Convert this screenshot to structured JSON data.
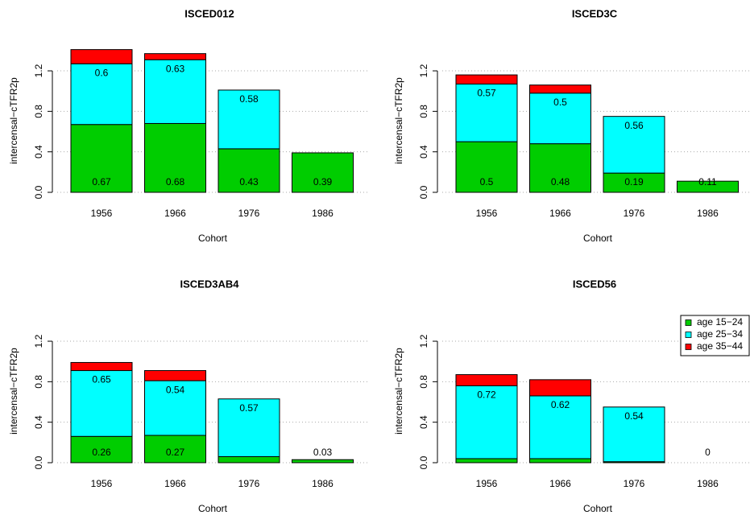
{
  "chart_data": [
    {
      "type": "bar",
      "stacked": true,
      "title": "ISCED012",
      "xlabel": "Cohort",
      "ylabel": "intercensal−cTFR2p",
      "categories": [
        "1956",
        "1966",
        "1976",
        "1986"
      ],
      "series": [
        {
          "name": "age 15−24",
          "color": "#00cd00",
          "labels": true,
          "values": [
            0.67,
            0.68,
            0.43,
            0.39
          ]
        },
        {
          "name": "age 25−34",
          "color": "#00ffff",
          "labels": true,
          "values": [
            0.6,
            0.63,
            0.58,
            null
          ]
        },
        {
          "name": "age 35−44",
          "color": "#ff0000",
          "labels": false,
          "values": [
            0.14,
            0.06,
            null,
            null
          ]
        }
      ],
      "ylim": [
        0,
        1.45
      ],
      "yticks": [
        {
          "value": 0,
          "label": "0.0"
        },
        0.4,
        0.8,
        1.2
      ],
      "grid": true
    },
    {
      "type": "bar",
      "stacked": true,
      "title": "ISCED3C",
      "xlabel": "Cohort",
      "ylabel": "intercensal−cTFR2p",
      "categories": [
        "1956",
        "1966",
        "1976",
        "1986"
      ],
      "series": [
        {
          "name": "age 15−24",
          "color": "#00cd00",
          "labels": true,
          "values": [
            0.5,
            0.48,
            0.19,
            0.11
          ]
        },
        {
          "name": "age 25−34",
          "color": "#00ffff",
          "labels": true,
          "values": [
            0.57,
            0.5,
            0.56,
            null
          ]
        },
        {
          "name": "age 35−44",
          "color": "#ff0000",
          "labels": false,
          "values": [
            0.09,
            0.08,
            null,
            null
          ]
        }
      ],
      "ylim": [
        0,
        1.45
      ],
      "yticks": [
        {
          "value": 0,
          "label": "0.0"
        },
        0.4,
        0.8,
        1.2
      ],
      "grid": true
    },
    {
      "type": "bar",
      "stacked": true,
      "title": "ISCED3AB4",
      "xlabel": "Cohort",
      "ylabel": "intercensal−cTFR2p",
      "categories": [
        "1956",
        "1966",
        "1976",
        "1986"
      ],
      "series": [
        {
          "name": "age 15−24",
          "color": "#00cd00",
          "labels": true,
          "values": [
            0.26,
            0.27,
            0.06,
            0.03
          ]
        },
        {
          "name": "age 25−34",
          "color": "#00ffff",
          "labels": true,
          "values": [
            0.65,
            0.54,
            0.57,
            null
          ]
        },
        {
          "name": "age 35−44",
          "color": "#ff0000",
          "labels": false,
          "values": [
            0.08,
            0.1,
            null,
            null
          ]
        }
      ],
      "ylim": [
        0,
        1.45
      ],
      "yticks": [
        {
          "value": 0,
          "label": "0.0"
        },
        0.4,
        0.8,
        1.2
      ],
      "grid": true
    },
    {
      "type": "bar",
      "stacked": true,
      "title": "ISCED56",
      "xlabel": "Cohort",
      "ylabel": "intercensal−cTFR2p",
      "categories": [
        "1956",
        "1966",
        "1976",
        "1986"
      ],
      "series": [
        {
          "name": "age 15−24",
          "color": "#00cd00",
          "labels": true,
          "values": [
            0.04,
            0.04,
            0.01,
            0
          ]
        },
        {
          "name": "age 25−34",
          "color": "#00ffff",
          "labels": true,
          "values": [
            0.72,
            0.62,
            0.54,
            null
          ]
        },
        {
          "name": "age 35−44",
          "color": "#ff0000",
          "labels": false,
          "values": [
            0.11,
            0.16,
            null,
            null
          ]
        }
      ],
      "ylim": [
        0,
        1.45
      ],
      "yticks": [
        {
          "value": 0,
          "label": "0.0"
        },
        0.4,
        0.8,
        1.2
      ],
      "grid": true,
      "legend": "topright"
    }
  ]
}
